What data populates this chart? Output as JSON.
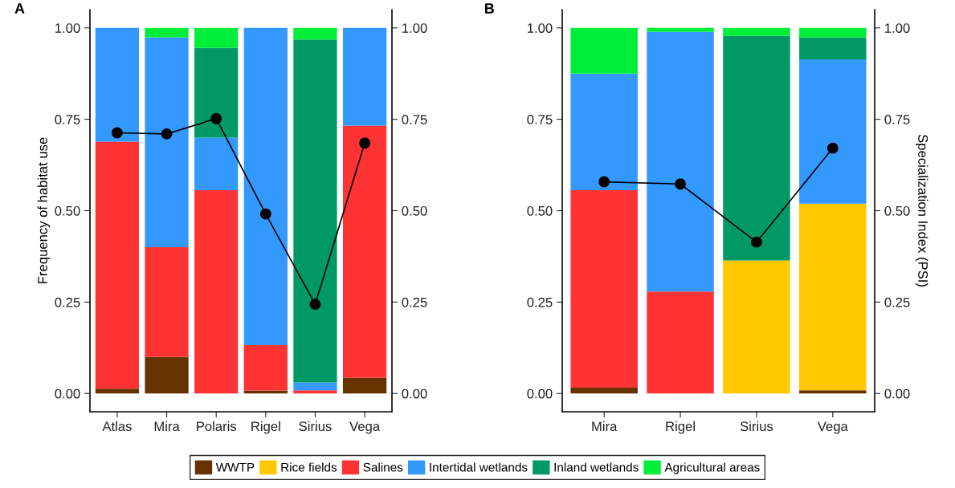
{
  "chart_data": [
    {
      "type": "bar",
      "stacked": true,
      "categories": [
        "Atlas",
        "Mira",
        "Polaris",
        "Rigel",
        "Sirius",
        "Vega"
      ],
      "ylabel": "Frequency of habitat use",
      "ylim": [
        -0.05,
        1.05
      ],
      "yticks": [
        {
          "value": 0,
          "label": "0.00"
        },
        {
          "value": 0.25,
          "label": "0.25"
        },
        {
          "value": 0.5,
          "label": "0.50"
        },
        {
          "value": 0.75,
          "label": "0.75"
        },
        {
          "value": 1,
          "label": "1.00"
        }
      ],
      "y2lim": [
        -0.05,
        1.05
      ],
      "y2ticks": [
        {
          "value": 0,
          "label": "0.00"
        },
        {
          "value": 0.25,
          "label": "0.25"
        },
        {
          "value": 0.5,
          "label": "0.50"
        },
        {
          "value": 0.75,
          "label": "0.75"
        },
        {
          "value": 1,
          "label": "1.00"
        }
      ],
      "annotations": [
        "A"
      ],
      "legend": "bottom",
      "grid": false,
      "series": [
        {
          "name": "WWTP",
          "color": "#663300",
          "values": [
            0.013,
            0.1,
            0,
            0.008,
            0,
            0.043
          ]
        },
        {
          "name": "Salines",
          "color": "#ff3333",
          "values": [
            0.676,
            0.3,
            0.556,
            0.124,
            0.009,
            0.69
          ]
        },
        {
          "name": "Intertidal wetlands",
          "color": "#3399ff",
          "values": [
            0.311,
            0.574,
            0.144,
            0.868,
            0.021,
            0.267
          ]
        },
        {
          "name": "Inland wetlands",
          "color": "#009966",
          "values": [
            0,
            0,
            0.245,
            0,
            0.938,
            0
          ]
        },
        {
          "name": "Agricultural areas",
          "color": "#00ee3a",
          "values": [
            0,
            0.026,
            0.055,
            0,
            0.032,
            0
          ]
        },
        {
          "type": "line",
          "axis": "y2",
          "color": "#000000",
          "marker": "circle",
          "values": [
            0.713,
            0.71,
            0.752,
            0.491,
            0.244,
            0.685
          ]
        }
      ]
    },
    {
      "type": "bar",
      "stacked": true,
      "categories": [
        "Mira",
        "Rigel",
        "Sirius",
        "Vega"
      ],
      "y2label": "Specialization Index (PSI)",
      "ylim": [
        -0.05,
        1.05
      ],
      "yticks": [
        {
          "value": 0,
          "label": "0.00"
        },
        {
          "value": 0.25,
          "label": "0.25"
        },
        {
          "value": 0.5,
          "label": "0.50"
        },
        {
          "value": 0.75,
          "label": "0.75"
        },
        {
          "value": 1,
          "label": "1.00"
        }
      ],
      "y2lim": [
        -0.05,
        1.05
      ],
      "y2ticks": [
        {
          "value": 0,
          "label": "0.00"
        },
        {
          "value": 0.25,
          "label": "0.25"
        },
        {
          "value": 0.5,
          "label": "0.50"
        },
        {
          "value": 0.75,
          "label": "0.75"
        },
        {
          "value": 1,
          "label": "1.00"
        }
      ],
      "annotations": [
        "B"
      ],
      "legend": "bottom",
      "grid": false,
      "series": [
        {
          "name": "WWTP",
          "color": "#663300",
          "values": [
            0.016,
            0,
            0,
            0.009
          ]
        },
        {
          "name": "Rice fields",
          "color": "#ffc800",
          "values": [
            0,
            0,
            0.364,
            0.51
          ]
        },
        {
          "name": "Salines",
          "color": "#ff3333",
          "values": [
            0.54,
            0.279,
            0,
            0
          ]
        },
        {
          "name": "Intertidal wetlands",
          "color": "#3399ff",
          "values": [
            0.319,
            0.71,
            0,
            0.395
          ]
        },
        {
          "name": "Inland wetlands",
          "color": "#009966",
          "values": [
            0,
            0,
            0.614,
            0.06
          ]
        },
        {
          "name": "Agricultural areas",
          "color": "#00ee3a",
          "values": [
            0.125,
            0.011,
            0.022,
            0.026
          ]
        },
        {
          "type": "line",
          "axis": "y2",
          "color": "#000000",
          "marker": "circle",
          "values": [
            0.579,
            0.573,
            0.414,
            0.671
          ]
        }
      ]
    }
  ]
}
